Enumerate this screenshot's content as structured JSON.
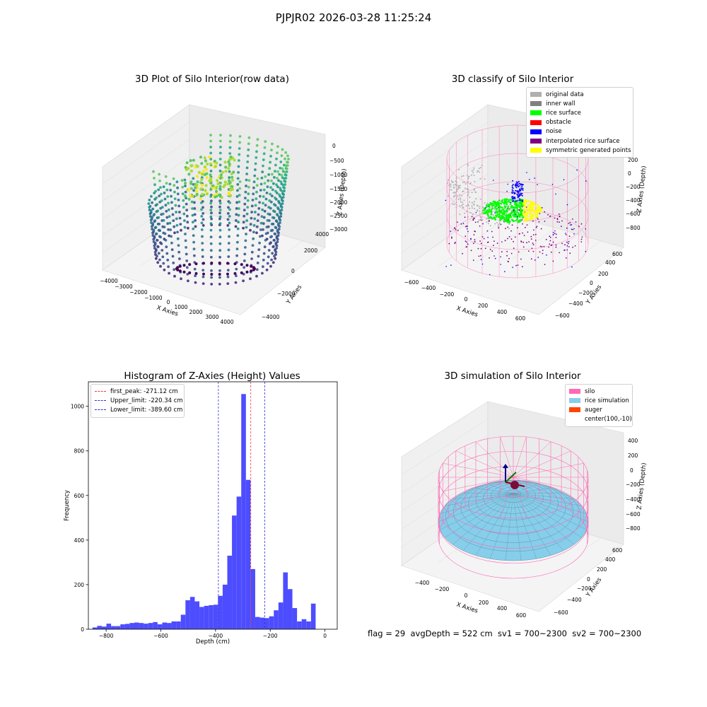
{
  "figure": {
    "suptitle": "PJPJR02 2026-03-28 11:25:24",
    "footer": "flag = 29  avgDepth = 522 cm  sv1 = 700~2300  sv2 = 700~2300"
  },
  "colors": {
    "hist_bar": "#4d4dff",
    "first_peak": "#e33b3b",
    "limits": "#2f2fd0",
    "silo": "#ff69b4",
    "rice_simulation": "#87ceeb",
    "auger": "#ff4500",
    "original": "#b0b0b0",
    "inner_wall": "#808080",
    "rice_surface": "#00ff00",
    "obstacle": "#ff0000",
    "noise": "#0000ff",
    "interpolated": "#800080",
    "symmetric": "#ffff00"
  },
  "chart_data": [
    {
      "type": "scatter",
      "title": "3D Plot of Silo Interior(row data)",
      "xlabel": "X Axies",
      "ylabel": "Y Axies",
      "zlabel": "Z Axies (Depth)",
      "xticks": [
        "−4000",
        "−3000",
        "−2000",
        "−1000",
        "0",
        "1000",
        "2000",
        "3000",
        "4000"
      ],
      "yticks": [
        "−4000",
        "−2000",
        "0",
        "2000",
        "4000"
      ],
      "zticks": [
        "0",
        "−500",
        "−1000",
        "−1500",
        "−2000",
        "−2500",
        "−3000"
      ],
      "colormap": "viridis"
    },
    {
      "type": "scatter",
      "title": "3D classify of Silo Interior",
      "xlabel": "X Axies",
      "ylabel": "Y Axies",
      "zlabel": "Z Axies (Depth)",
      "xticks": [
        "−600",
        "−400",
        "−200",
        "0",
        "200",
        "400",
        "600"
      ],
      "yticks": [
        "−600",
        "−400",
        "−200",
        "0",
        "200",
        "400",
        "600"
      ],
      "zticks": [
        "200",
        "0",
        "−200",
        "−400",
        "−600",
        "−800"
      ],
      "legend": [
        "original data",
        "inner wall",
        "rice surface",
        "obstacle",
        "noise",
        "interpolated rice surface",
        "symmetric generated points"
      ],
      "legend_position": "top-right"
    },
    {
      "type": "bar",
      "title": "Histogram of Z-Axies (Height) Values",
      "xlabel": "Depth (cm)",
      "ylabel": "Frequency",
      "xlim": [
        -865,
        45
      ],
      "ylim": [
        0,
        1110
      ],
      "xticks": [
        -800,
        -600,
        -400,
        -200,
        0
      ],
      "xtick_labels": [
        "−800",
        "−600",
        "−400",
        "−200",
        "0"
      ],
      "yticks": [
        0,
        200,
        400,
        600,
        800,
        1000
      ],
      "yticks_labels": [
        "0",
        "200",
        "400",
        "600",
        "800",
        "1000"
      ],
      "bin_start": -850,
      "bin_width": 17,
      "values": [
        8,
        15,
        12,
        25,
        14,
        14,
        22,
        24,
        28,
        30,
        28,
        25,
        28,
        32,
        22,
        30,
        28,
        35,
        35,
        65,
        130,
        145,
        125,
        100,
        105,
        108,
        110,
        150,
        200,
        330,
        510,
        595,
        1055,
        670,
        270,
        55,
        52,
        50,
        58,
        85,
        120,
        255,
        180,
        95,
        35,
        45,
        35,
        115
      ],
      "lines": [
        {
          "label": "first_peak: -271.12 cm",
          "x": -271.12,
          "style": "first_peak"
        },
        {
          "label": "Upper_limit: -220.34 cm",
          "x": -220.34,
          "style": "limits"
        },
        {
          "label": "Lower_limit: -389.60 cm",
          "x": -389.6,
          "style": "limits"
        }
      ],
      "legend_position": "top-left"
    },
    {
      "type": "scatter",
      "title": "3D simulation of Silo Interior",
      "xlabel": "X Axies",
      "ylabel": "Y Axies",
      "zlabel": "Z Axies (Depth)",
      "xticks": [
        "−400",
        "−200",
        "0",
        "200",
        "400",
        "600"
      ],
      "yticks": [
        "−600",
        "−400",
        "−200",
        "0",
        "200",
        "400",
        "600"
      ],
      "zticks": [
        "400",
        "200",
        "0",
        "−200",
        "−400",
        "−600",
        "−800"
      ],
      "legend": [
        "silo",
        "rice simulation",
        "auger",
        "center(100,-10)"
      ],
      "legend_position": "top-right"
    }
  ]
}
